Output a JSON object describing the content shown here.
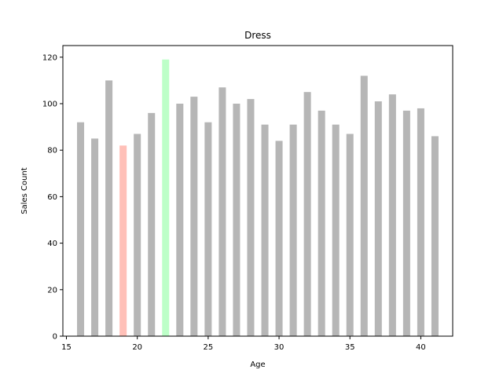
{
  "chart_data": {
    "type": "bar",
    "title": "Dress",
    "xlabel": "Age",
    "ylabel": "Sales Count",
    "xlim": [
      14.75,
      42.25
    ],
    "ylim": [
      0,
      125
    ],
    "xticks": [
      15,
      20,
      25,
      30,
      35,
      40
    ],
    "yticks": [
      0,
      20,
      40,
      60,
      80,
      100,
      120
    ],
    "grid": false,
    "bar_width": 0.5,
    "x": [
      16,
      17,
      18,
      19,
      20,
      21,
      22,
      23,
      24,
      25,
      26,
      27,
      28,
      29,
      30,
      31,
      32,
      33,
      34,
      35,
      36,
      37,
      38,
      39,
      40,
      41
    ],
    "values": [
      92,
      85,
      110,
      82,
      87,
      96,
      119,
      100,
      103,
      92,
      107,
      100,
      102,
      91,
      84,
      91,
      105,
      97,
      91,
      87,
      112,
      101,
      104,
      97,
      98,
      86
    ],
    "colors": {
      "default": "#b6b6b6",
      "min": "#ffc0b8",
      "max": "#bdffc8"
    },
    "highlight": {
      "min_x": 19,
      "max_x": 22
    }
  }
}
